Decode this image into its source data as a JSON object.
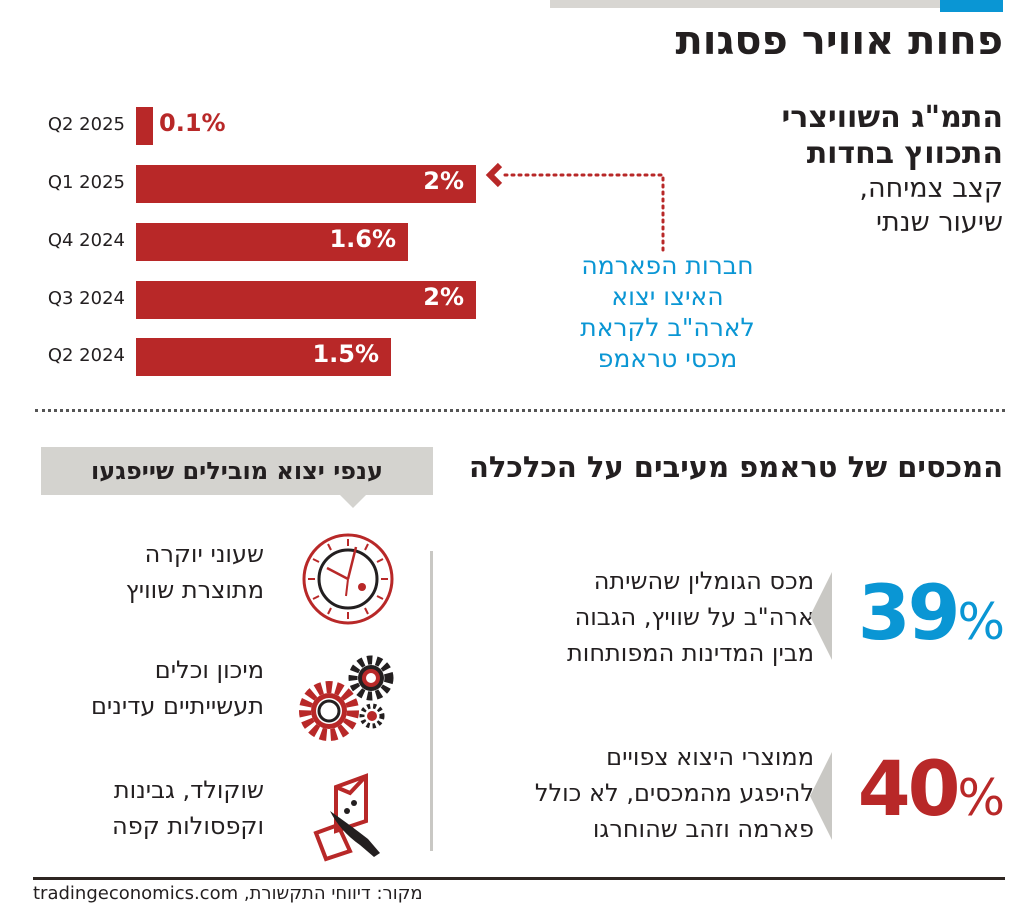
{
  "title": "פחות אוויר פסגות",
  "colors": {
    "bar": "#b82828",
    "accent_blue": "#0a96d4",
    "accent_red": "#b82828",
    "panel_gray": "#d4d3cf"
  },
  "subtitle": {
    "line1": "התמ\"ג השוויצרי",
    "line2": "התכווץ בחדות",
    "line3": "קצב צמיחה,",
    "line4": "שיעור שנתי"
  },
  "chart_data": {
    "type": "bar",
    "orientation": "horizontal",
    "categories": [
      "Q2 2025",
      "Q1 2025",
      "Q4 2024",
      "Q3 2024",
      "Q2 2024"
    ],
    "values": [
      0.1,
      2,
      1.6,
      2,
      1.5
    ],
    "data_labels": [
      "0.1%",
      "2%",
      "1.6%",
      "2%",
      "1.5%"
    ],
    "unit": "%",
    "xlim": [
      0,
      2
    ],
    "grid": false,
    "annotation": {
      "target": "Q1 2025",
      "lines": [
        "חברות הפארמה",
        "האיצו יצוא",
        "לארה\"ב לקראת",
        "מכסי טראמפ"
      ]
    }
  },
  "section2": {
    "heading": "המכסים של טראמפ מעיבים על הכלכלה",
    "stats": [
      {
        "value": "39",
        "unit": "%",
        "color": "#0a96d4",
        "lines": [
          "מכס הגומלין שהשיתה",
          "ארה\"ב על שוויץ, הגבוה",
          "מבין המדינות המפותחות"
        ]
      },
      {
        "value": "40",
        "unit": "%",
        "color": "#b82828",
        "lines": [
          "ממוצרי היצוא צפויים",
          "להיפגע מהמכסים, לא כולל",
          "פארמה וזהב שהוחרגו"
        ]
      }
    ]
  },
  "sectors": {
    "heading": "ענפי יצוא מובילים שייפגעו",
    "items": [
      {
        "icon": "clock-icon",
        "lines": [
          "שעוני יוקרה",
          "מתוצרת שוויץ"
        ]
      },
      {
        "icon": "gears-icon",
        "lines": [
          "מיכון וכלים",
          "תעשייתיים עדינים"
        ]
      },
      {
        "icon": "cheese-knife-icon",
        "lines": [
          "שוקולד, גבינות",
          "וקפסולות קפה"
        ]
      }
    ]
  },
  "source": "מקור: דיווחי התקשורת, tradingeconomics.com"
}
